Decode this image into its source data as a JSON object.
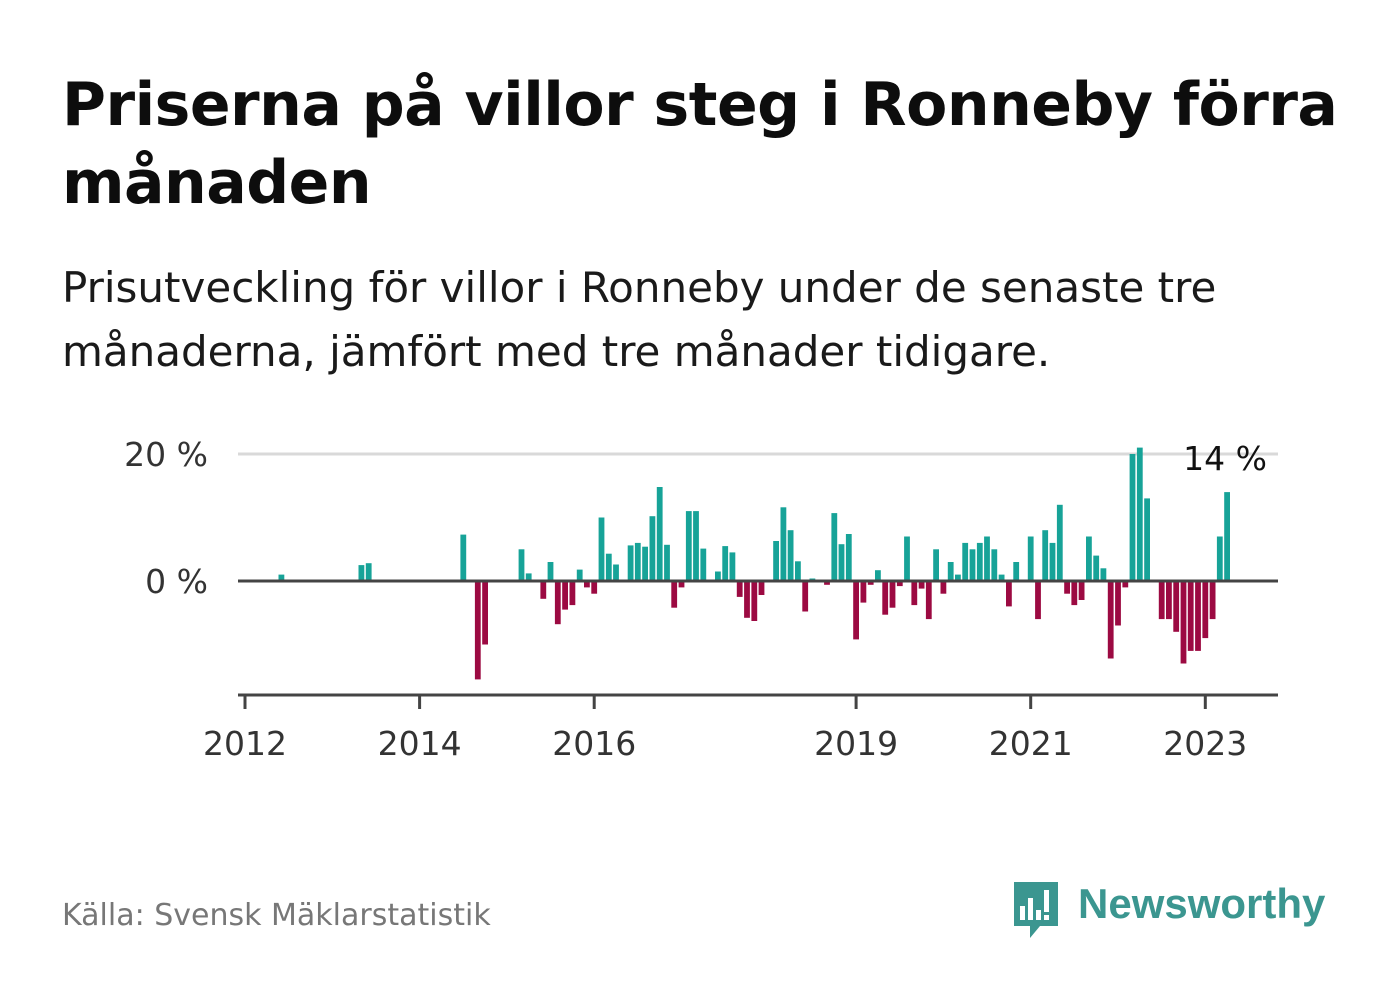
{
  "header": {
    "title": "Priserna på villor steg i Ronneby förra månaden",
    "subtitle": "Prisutveckling för villor i Ronneby under de senaste tre månaderna, jämfört med tre månader tidigare."
  },
  "footer": {
    "source": "Källa: Svensk Mäklarstatistik",
    "brand": "Newsworthy"
  },
  "colors": {
    "positive": "#17a398",
    "negative": "#9c0a42",
    "brand": "#3b9690",
    "gridline": "#d9d9d9",
    "axis": "#444444"
  },
  "icons": {
    "logo": "bar-chart-speech-bubble-icon"
  },
  "chart_data": {
    "type": "bar",
    "title": "",
    "xlabel": "",
    "ylabel": "",
    "ylim": [
      -18,
      22
    ],
    "y_ticks": [
      {
        "value": 0,
        "label": "0 %"
      },
      {
        "value": 20,
        "label": "20 %"
      }
    ],
    "x_ticks": [
      {
        "value": "2012-01",
        "label": "2012"
      },
      {
        "value": "2014-01",
        "label": "2014"
      },
      {
        "value": "2016-01",
        "label": "2016"
      },
      {
        "value": "2019-01",
        "label": "2019"
      },
      {
        "value": "2021-01",
        "label": "2021"
      },
      {
        "value": "2023-01",
        "label": "2023"
      }
    ],
    "grid": "horizontal",
    "annotation": {
      "value": 14,
      "label": "14 %",
      "at": "2023-04"
    },
    "series": [
      {
        "points": [
          [
            "2012-06",
            1.0
          ],
          [
            "2013-05",
            2.5
          ],
          [
            "2013-06",
            2.8
          ],
          [
            "2014-07",
            7.3
          ],
          [
            "2014-09",
            -15.5
          ],
          [
            "2014-10",
            -10.0
          ],
          [
            "2015-03",
            5.0
          ],
          [
            "2015-04",
            1.2
          ],
          [
            "2015-06",
            -2.8
          ],
          [
            "2015-07",
            3.0
          ],
          [
            "2015-08",
            -6.8
          ],
          [
            "2015-09",
            -4.5
          ],
          [
            "2015-10",
            -3.8
          ],
          [
            "2015-11",
            1.8
          ],
          [
            "2015-12",
            -1.0
          ],
          [
            "2016-01",
            -2.0
          ],
          [
            "2016-02",
            10.0
          ],
          [
            "2016-03",
            4.3
          ],
          [
            "2016-04",
            2.6
          ],
          [
            "2016-06",
            5.6
          ],
          [
            "2016-07",
            6.0
          ],
          [
            "2016-08",
            5.4
          ],
          [
            "2016-09",
            10.2
          ],
          [
            "2016-10",
            14.8
          ],
          [
            "2016-11",
            5.7
          ],
          [
            "2016-12",
            -4.2
          ],
          [
            "2017-01",
            -1.0
          ],
          [
            "2017-02",
            11.0
          ],
          [
            "2017-03",
            11.0
          ],
          [
            "2017-04",
            5.1
          ],
          [
            "2017-06",
            1.5
          ],
          [
            "2017-07",
            5.5
          ],
          [
            "2017-08",
            4.5
          ],
          [
            "2017-09",
            -2.5
          ],
          [
            "2017-10",
            -5.8
          ],
          [
            "2017-11",
            -6.3
          ],
          [
            "2017-12",
            -2.2
          ],
          [
            "2018-02",
            6.3
          ],
          [
            "2018-03",
            11.6
          ],
          [
            "2018-04",
            8.0
          ],
          [
            "2018-05",
            3.1
          ],
          [
            "2018-06",
            -4.8
          ],
          [
            "2018-07",
            0.4
          ],
          [
            "2018-09",
            -0.6
          ],
          [
            "2018-10",
            10.7
          ],
          [
            "2018-11",
            5.8
          ],
          [
            "2018-12",
            7.4
          ],
          [
            "2019-01",
            -9.2
          ],
          [
            "2019-02",
            -3.4
          ],
          [
            "2019-03",
            -0.6
          ],
          [
            "2019-04",
            1.7
          ],
          [
            "2019-05",
            -5.3
          ],
          [
            "2019-06",
            -4.2
          ],
          [
            "2019-07",
            -0.8
          ],
          [
            "2019-08",
            7.0
          ],
          [
            "2019-09",
            -3.8
          ],
          [
            "2019-10",
            -1.2
          ],
          [
            "2019-11",
            -6.0
          ],
          [
            "2019-12",
            5.0
          ],
          [
            "2020-01",
            -2.0
          ],
          [
            "2020-02",
            3.0
          ],
          [
            "2020-03",
            1.0
          ],
          [
            "2020-04",
            6.0
          ],
          [
            "2020-05",
            5.0
          ],
          [
            "2020-06",
            6.0
          ],
          [
            "2020-07",
            7.0
          ],
          [
            "2020-08",
            5.0
          ],
          [
            "2020-09",
            1.0
          ],
          [
            "2020-10",
            -4.0
          ],
          [
            "2020-11",
            3.0
          ],
          [
            "2021-01",
            7.0
          ],
          [
            "2021-02",
            -6.0
          ],
          [
            "2021-03",
            8.0
          ],
          [
            "2021-04",
            6.0
          ],
          [
            "2021-05",
            12.0
          ],
          [
            "2021-06",
            -2.0
          ],
          [
            "2021-07",
            -3.8
          ],
          [
            "2021-08",
            -3.0
          ],
          [
            "2021-09",
            7.0
          ],
          [
            "2021-10",
            4.0
          ],
          [
            "2021-11",
            2.0
          ],
          [
            "2021-12",
            -12.2
          ],
          [
            "2022-01",
            -7.0
          ],
          [
            "2022-02",
            -1.0
          ],
          [
            "2022-03",
            20.0
          ],
          [
            "2022-04",
            21.0
          ],
          [
            "2022-05",
            13.0
          ],
          [
            "2022-07",
            -6.0
          ],
          [
            "2022-08",
            -6.0
          ],
          [
            "2022-09",
            -8.0
          ],
          [
            "2022-10",
            -13.0
          ],
          [
            "2022-11",
            -11.0
          ],
          [
            "2022-12",
            -11.0
          ],
          [
            "2023-01",
            -9.0
          ],
          [
            "2023-02",
            -6.0
          ],
          [
            "2023-03",
            7.0
          ],
          [
            "2023-04",
            14.0
          ]
        ]
      }
    ]
  }
}
